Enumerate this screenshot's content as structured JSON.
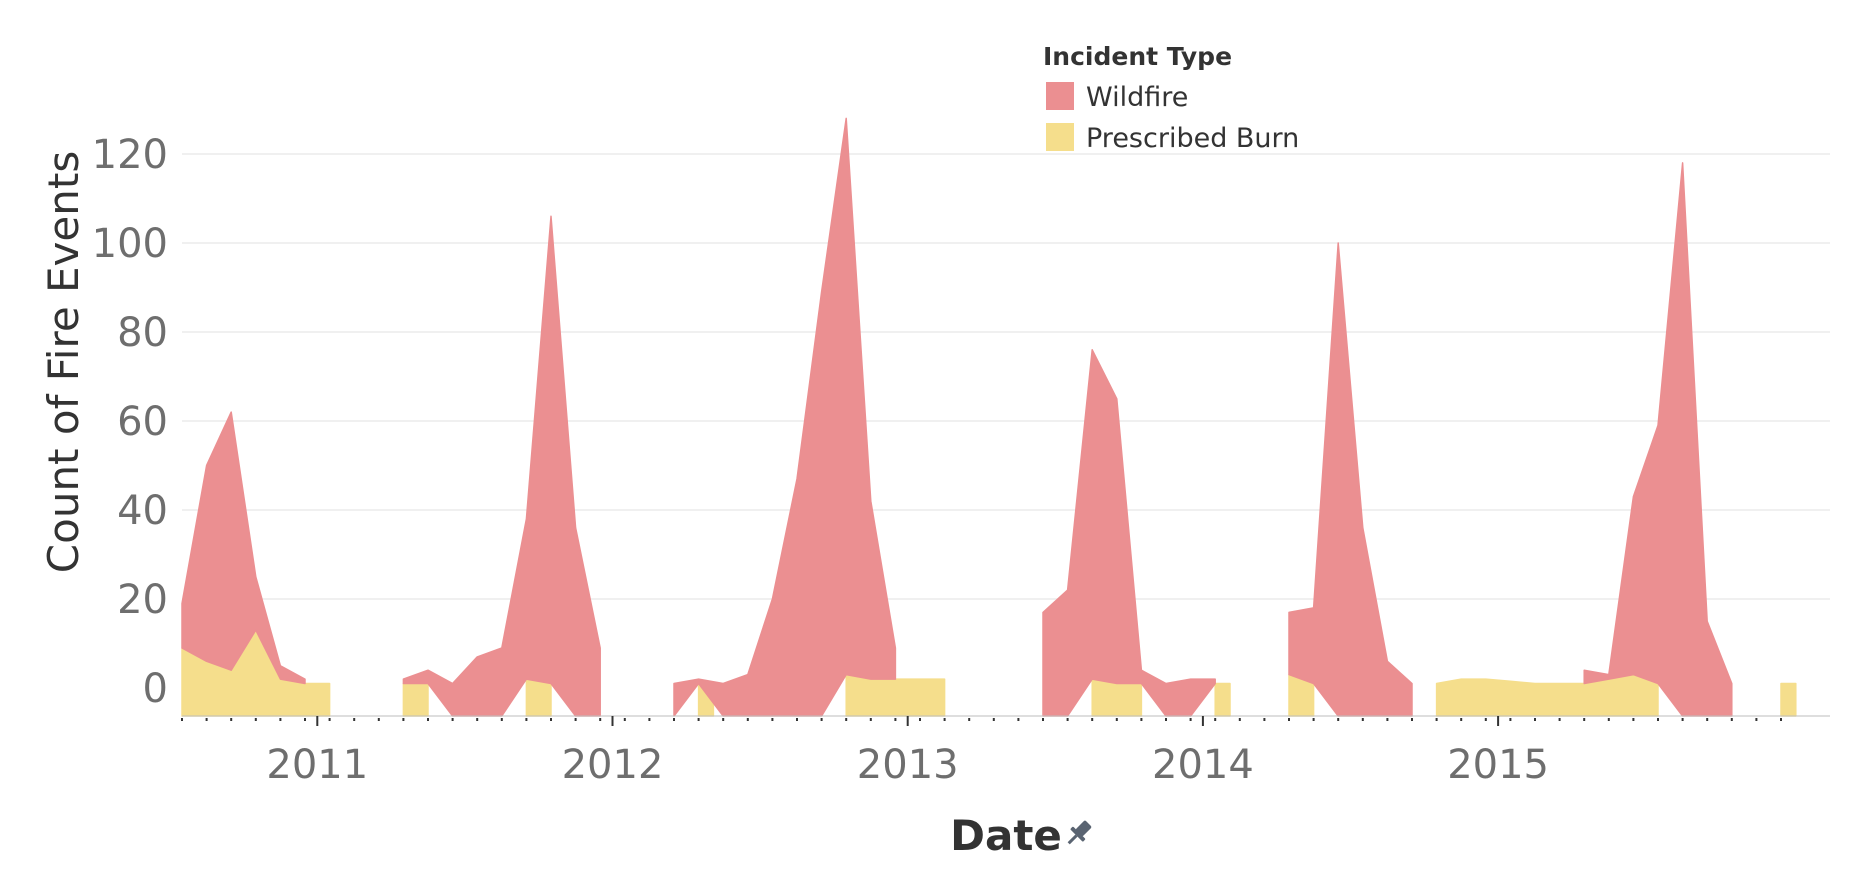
{
  "chart_data": {
    "type": "area",
    "title": "",
    "xlabel": "Date",
    "ylabel": "Count of Fire Events",
    "x_tick_labels": [
      "2011",
      "2012",
      "2013",
      "2014",
      "2015"
    ],
    "y_tick_labels": [
      "0",
      "20",
      "40",
      "60",
      "80",
      "100",
      "120"
    ],
    "ylim": [
      0,
      120
    ],
    "xlim": [
      "2010-07",
      "2015-12"
    ],
    "grid": "horizontal",
    "legend": {
      "title": "Incident Type",
      "position": "top-center",
      "entries": [
        "Wildfire",
        "Prescribed Burn"
      ]
    },
    "stacked": true,
    "x": [
      "2010-07",
      "2010-08",
      "2010-09",
      "2010-10",
      "2010-11",
      "2010-12",
      "2011-01",
      "2011-02",
      "2011-03",
      "2011-04",
      "2011-05",
      "2011-06",
      "2011-07",
      "2011-08",
      "2011-09",
      "2011-10",
      "2011-11",
      "2011-12",
      "2012-01",
      "2012-02",
      "2012-03",
      "2012-04",
      "2012-05",
      "2012-06",
      "2012-07",
      "2012-08",
      "2012-09",
      "2012-10",
      "2012-11",
      "2012-12",
      "2013-01",
      "2013-02",
      "2013-03",
      "2013-04",
      "2013-05",
      "2013-06",
      "2013-07",
      "2013-08",
      "2013-09",
      "2013-10",
      "2013-11",
      "2013-12",
      "2014-01",
      "2014-02",
      "2014-03",
      "2014-04",
      "2014-05",
      "2014-06",
      "2014-07",
      "2014-08",
      "2014-09",
      "2014-10",
      "2014-11",
      "2014-12",
      "2015-01",
      "2015-02",
      "2015-03",
      "2015-04",
      "2015-05",
      "2015-06",
      "2015-07",
      "2015-08",
      "2015-09",
      "2015-10",
      "2015-11",
      "2015-12"
    ],
    "series": [
      {
        "name": "Prescribed Burn",
        "color": "#f5de8c",
        "values": [
          9,
          6,
          4,
          13,
          2,
          1,
          1,
          null,
          null,
          1,
          1,
          null,
          null,
          null,
          2,
          1,
          null,
          null,
          null,
          null,
          null,
          1,
          null,
          null,
          null,
          null,
          null,
          3,
          2,
          2,
          2,
          2,
          null,
          null,
          null,
          null,
          null,
          2,
          1,
          1,
          null,
          null,
          1,
          null,
          null,
          3,
          1,
          null,
          null,
          null,
          null,
          1,
          2,
          2,
          1.5,
          1,
          1,
          1,
          2,
          3,
          1,
          null,
          null,
          null,
          null,
          1
        ]
      },
      {
        "name": "Wildfire",
        "color": "#eb8f91",
        "values": [
          10,
          44,
          58,
          12,
          3,
          1,
          null,
          null,
          null,
          1,
          3,
          1,
          7,
          9,
          36,
          105,
          36,
          9,
          null,
          null,
          1,
          1,
          1,
          3,
          20,
          47,
          89,
          125,
          40,
          7,
          null,
          null,
          null,
          null,
          null,
          17,
          22,
          74,
          64,
          3,
          1,
          2,
          1,
          null,
          null,
          14,
          17,
          100,
          36,
          6,
          1,
          null,
          null,
          null,
          null,
          null,
          null,
          3,
          1,
          40,
          58,
          118,
          15,
          1,
          null,
          null
        ]
      }
    ]
  }
}
